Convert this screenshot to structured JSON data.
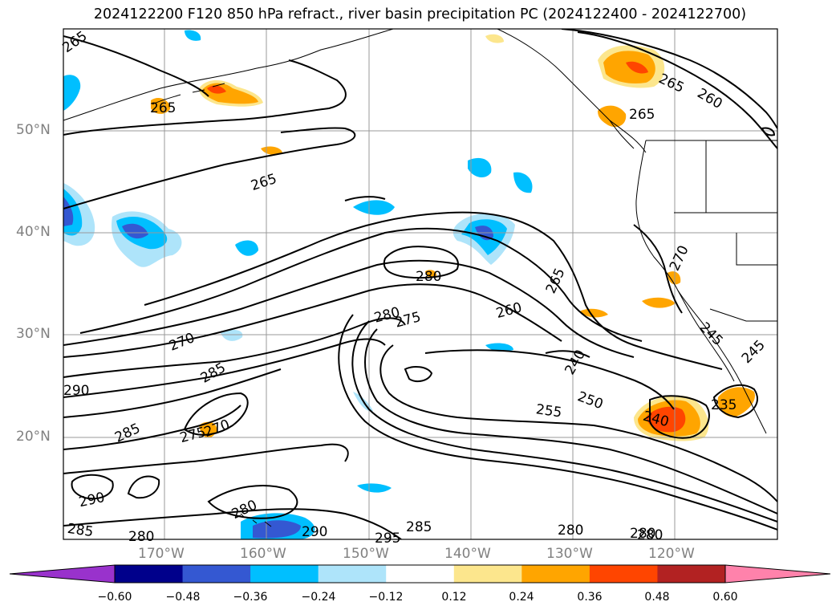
{
  "title": "2024122200 F120 850 hPa refract., river basin precipitation PC (2024122400 - 2024122700)",
  "lat_labels": [
    "50°N",
    "40°N",
    "30°N",
    "20°N"
  ],
  "lon_labels": [
    "170°W",
    "160°W",
    "150°W",
    "140°W",
    "130°W",
    "120°W"
  ],
  "contour_labels": [
    "265",
    "265",
    "265",
    "265",
    "260",
    "270",
    "280",
    "280",
    "275",
    "265",
    "260",
    "270",
    "285",
    "285",
    "270",
    "275",
    "240",
    "250",
    "255",
    "240",
    "235",
    "245",
    "245",
    "290",
    "280",
    "285",
    "280",
    "290",
    "295",
    "285",
    "280",
    "280",
    "265",
    "280",
    "290"
  ],
  "colorbar": {
    "colors": [
      "#9932cc",
      "#00008b",
      "#3458d2",
      "#00bfff",
      "#aee4fa",
      "#ffffff",
      "#fce68d",
      "#ffa500",
      "#ff4500",
      "#b22222",
      "#ff82ab"
    ],
    "ticks": [
      "−0.60",
      "−0.48",
      "−0.36",
      "−0.24",
      "−0.12",
      "0.12",
      "0.24",
      "0.36",
      "0.48",
      "0.60"
    ]
  }
}
